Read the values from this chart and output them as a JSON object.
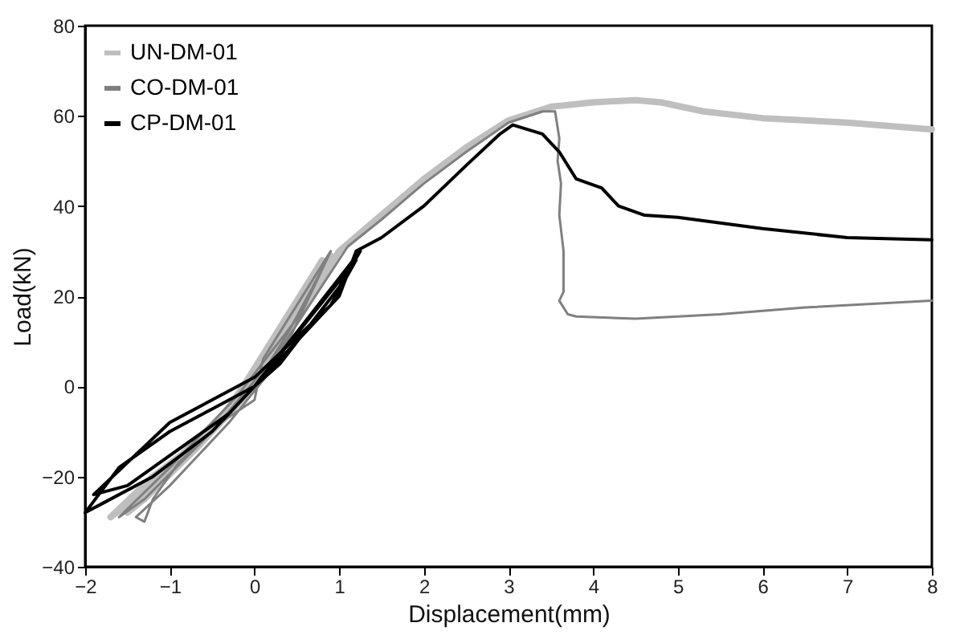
{
  "chart_data": {
    "type": "line",
    "xlabel": "Displacement(mm)",
    "ylabel": "Load(kN)",
    "xlim": [
      -2,
      8
    ],
    "ylim": [
      -40,
      80
    ],
    "xticks": [
      -2,
      -1,
      0,
      1,
      2,
      3,
      4,
      5,
      6,
      7,
      8
    ],
    "yticks": [
      -40,
      -20,
      0,
      20,
      40,
      60,
      80
    ],
    "grid": false,
    "legend": "top left",
    "marker": "none",
    "line_style": "solid",
    "series": [
      {
        "name": "UN-DM-01",
        "color": "#bfbfbf",
        "x": [
          0,
          0.3,
          0.6,
          0.8,
          0.6,
          0,
          -0.3,
          -0.8,
          -1.2,
          -1.5,
          -1.3,
          -0.7,
          0,
          0.5,
          0.9,
          0.6,
          -0.5,
          -1.2,
          -1.7,
          -1.2,
          -0.2,
          0.5,
          1,
          1.5,
          2,
          2.5,
          3,
          3.5,
          4,
          4.5,
          4.8,
          5.3,
          6,
          7,
          8
        ],
        "values": [
          0,
          10,
          20,
          28,
          22,
          4,
          -5,
          -14,
          -22,
          -28,
          -25,
          -14,
          0,
          18,
          29,
          20,
          -10,
          -20,
          -29,
          -22,
          -4,
          15,
          30,
          38,
          46,
          53,
          59,
          62,
          63,
          63.5,
          63,
          61,
          59.5,
          58.5,
          57
        ]
      },
      {
        "name": "CO-DM-01",
        "color": "#808080",
        "x": [
          0,
          0.4,
          0.8,
          0.9,
          0.7,
          0.1,
          0,
          -0.4,
          -0.9,
          -1.2,
          -1.3,
          -1.4,
          -1,
          -0.3,
          0.3,
          0.85,
          0.5,
          -0.2,
          -1,
          -1.6,
          -1.3,
          -0.5,
          0.3,
          1.1,
          1.5,
          2,
          2.5,
          3,
          3.4,
          3.55,
          3.6,
          3.58,
          3.62,
          3.6,
          3.65,
          3.65,
          3.6,
          3.7,
          3.8,
          4.5,
          5.5,
          6.5,
          8
        ],
        "values": [
          0,
          12,
          26,
          30,
          24,
          6,
          -3,
          -8,
          -17,
          -25,
          -30,
          -29,
          -22,
          -8,
          6,
          28,
          15,
          -2,
          -18,
          -29,
          -25,
          -10,
          8,
          31,
          37,
          45,
          52,
          58.5,
          61,
          61,
          55,
          50,
          45,
          38,
          30,
          21,
          19,
          16,
          15.5,
          15,
          16,
          17.5,
          19
        ]
      },
      {
        "name": "CP-DM-01",
        "color": "#000000",
        "x": [
          0,
          0.5,
          1,
          1.25,
          1,
          0.3,
          0,
          -0.5,
          -1,
          -1.6,
          -2,
          -1.8,
          -1.2,
          -0.5,
          0,
          0.6,
          1.2,
          0.9,
          0,
          -1,
          -1.9,
          -1.5,
          -0.3,
          0.5,
          1,
          1.2,
          1.5,
          2,
          2.5,
          2.9,
          3.05,
          3.4,
          3.6,
          3.8,
          4.1,
          4.3,
          4.6,
          5,
          6,
          7,
          8
        ],
        "values": [
          0,
          12,
          24,
          30,
          22,
          5,
          0,
          -5,
          -10,
          -18,
          -28,
          -26,
          -20,
          -10,
          0,
          14,
          28,
          18,
          2,
          -8,
          -24,
          -22,
          -6,
          10,
          20,
          30,
          33,
          40,
          49,
          56,
          58,
          56,
          52,
          46,
          44,
          40,
          38,
          37.5,
          35,
          33,
          32.5
        ]
      }
    ]
  }
}
